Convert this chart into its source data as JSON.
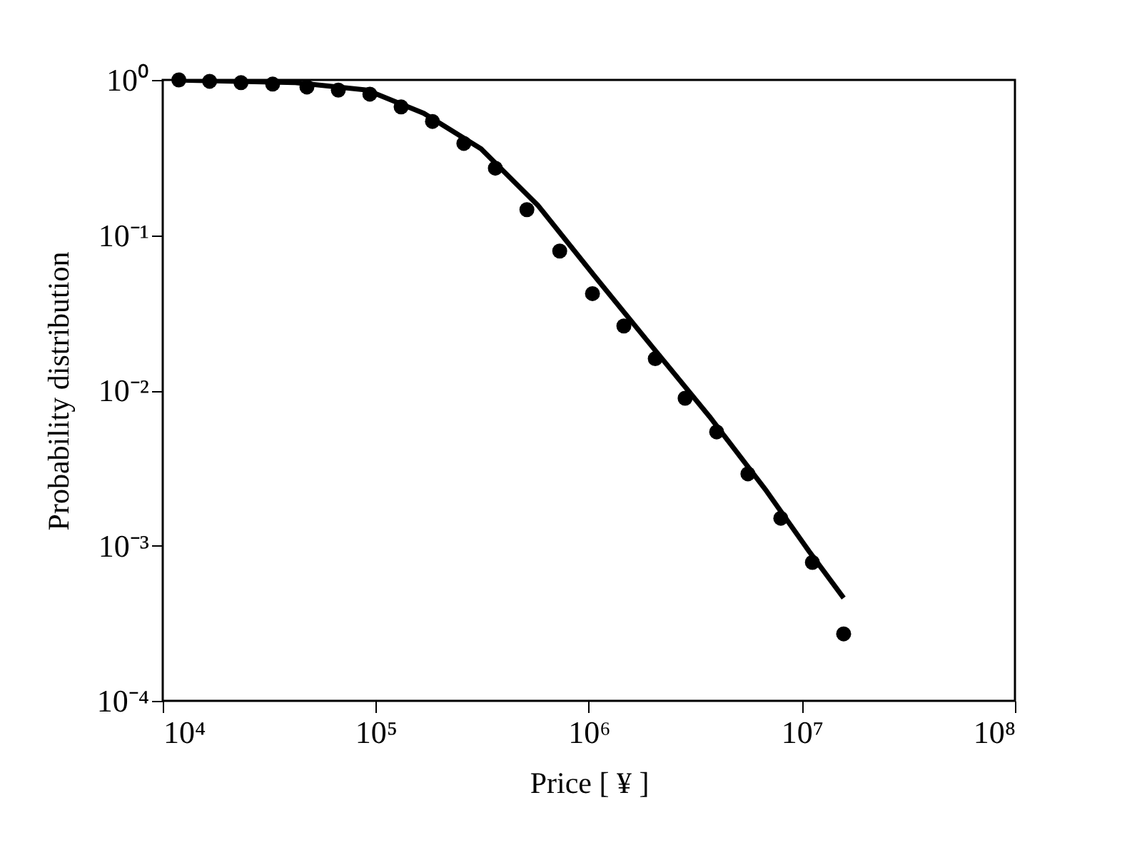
{
  "chart_data": {
    "type": "scatter",
    "xlabel": "Price [ ¥ ]",
    "ylabel": "Probability distribution",
    "log": "xy",
    "grid": false,
    "xlim": [
      10000,
      100000000
    ],
    "ylim": [
      0.0001,
      1
    ],
    "xticks": [
      {
        "value": 10000,
        "label": "10⁴"
      },
      {
        "value": 100000,
        "label": "10⁵"
      },
      {
        "value": 1000000,
        "label": "10⁶"
      },
      {
        "value": 10000000,
        "label": "10⁷"
      },
      {
        "value": 100000000,
        "label": "10⁸"
      }
    ],
    "yticks": [
      {
        "value": 0.0001,
        "label": "10⁻⁴"
      },
      {
        "value": 0.001,
        "label": "10⁻³"
      },
      {
        "value": 0.01,
        "label": "10⁻²"
      },
      {
        "value": 0.1,
        "label": "10⁻¹"
      },
      {
        "value": 1,
        "label": "10⁰"
      }
    ],
    "series": [
      {
        "marker": "circle",
        "color": "#000000",
        "x": [
          11900,
          16600,
          23300,
          32800,
          47500,
          66700,
          93800,
          131500,
          184500,
          259000,
          364000,
          512000,
          730000,
          1040000,
          1460000,
          2050000,
          2830000,
          3980000,
          5580000,
          7960000,
          11200000,
          15700000
        ],
        "values": [
          1.0,
          0.98,
          0.96,
          0.94,
          0.9,
          0.86,
          0.81,
          0.67,
          0.54,
          0.39,
          0.27,
          0.146,
          0.079,
          0.042,
          0.026,
          0.016,
          0.0089,
          0.0054,
          0.0029,
          0.0015,
          0.00078,
          0.00027
        ]
      },
      {
        "type": "line",
        "marker": "none",
        "color": "#000000",
        "line_style": "solid",
        "x": [
          11300,
          42000,
          90800,
          168000,
          312000,
          578000,
          1070000,
          1990000,
          3680000,
          6820000,
          10800000,
          15700000
        ],
        "values": [
          1.0,
          0.96,
          0.86,
          0.61,
          0.36,
          0.155,
          0.054,
          0.019,
          0.0068,
          0.00225,
          0.00092,
          0.00046
        ]
      }
    ]
  }
}
